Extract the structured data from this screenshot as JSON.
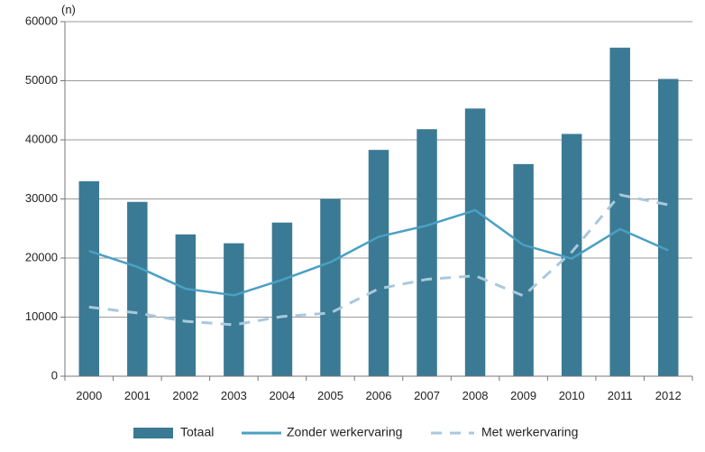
{
  "chart_data": {
    "type": "bar",
    "unit_label": "(n)",
    "categories": [
      "2000",
      "2001",
      "2002",
      "2003",
      "2004",
      "2005",
      "2006",
      "2007",
      "2008",
      "2009",
      "2010",
      "2011",
      "2012"
    ],
    "ylim": [
      0,
      60000
    ],
    "yticks": [
      0,
      10000,
      20000,
      30000,
      40000,
      50000,
      60000
    ],
    "grid": true,
    "legend_position": "bottom",
    "series": [
      {
        "name": "Totaal",
        "kind": "bar",
        "color": "#3b7a94",
        "values": [
          33000,
          29500,
          24000,
          22500,
          26000,
          30000,
          38300,
          41800,
          45300,
          35900,
          41000,
          55600,
          50300
        ]
      },
      {
        "name": "Zonder werkervaring",
        "kind": "line",
        "style": "solid",
        "color": "#4aa0c4",
        "values": [
          21200,
          18500,
          14800,
          13700,
          16300,
          19300,
          23600,
          25500,
          28100,
          22200,
          19900,
          24900,
          21300
        ]
      },
      {
        "name": "Met werkervaring",
        "kind": "line",
        "style": "dashed",
        "color": "#a9c9dc",
        "values": [
          11700,
          10700,
          9300,
          8700,
          10100,
          10700,
          14800,
          16400,
          17000,
          13600,
          21000,
          30700,
          29000
        ]
      }
    ]
  }
}
